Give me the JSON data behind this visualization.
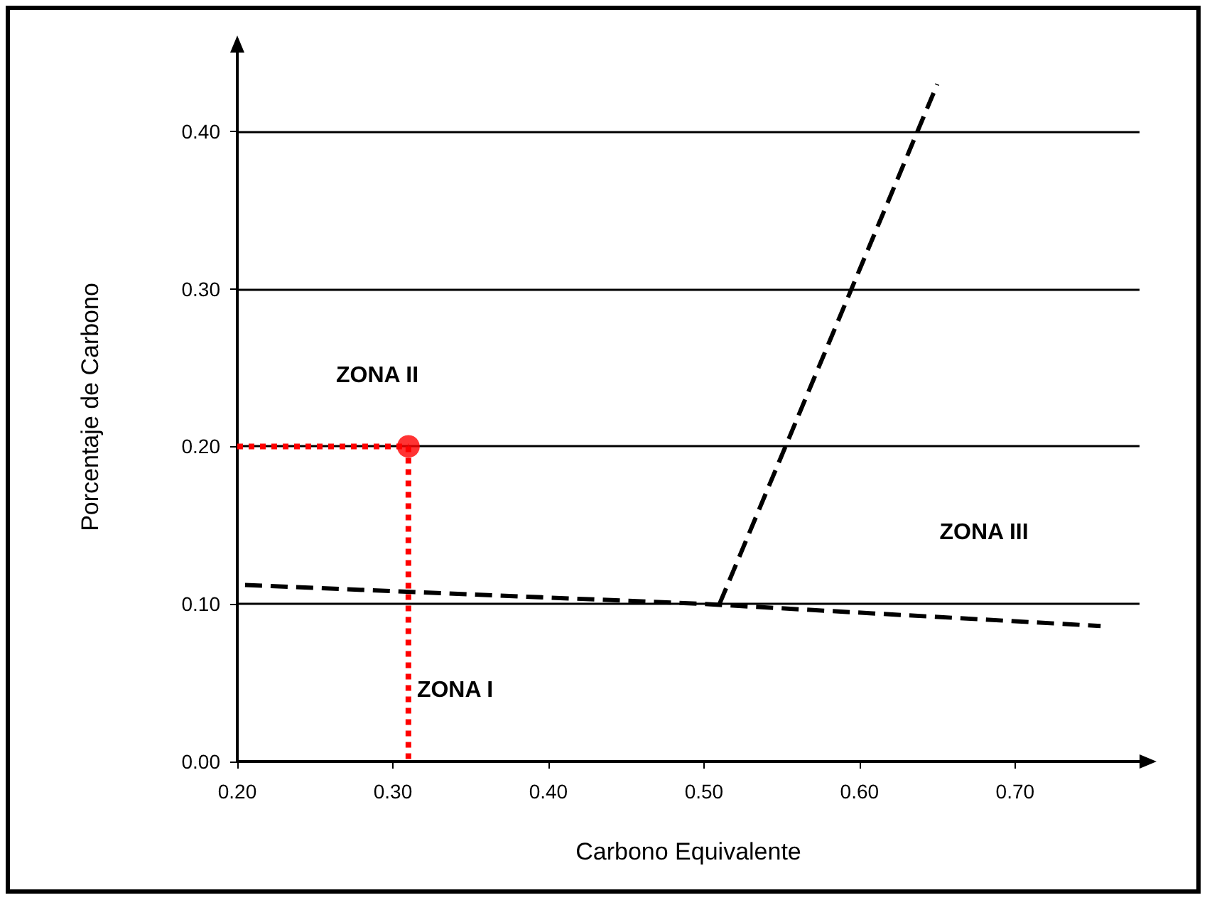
{
  "chart_data": {
    "type": "line",
    "xlabel": "Carbono Equivalente",
    "ylabel": "Porcentaje de Carbono",
    "xlim": [
      0.2,
      0.78
    ],
    "ylim": [
      0,
      0.45
    ],
    "xticks": [
      {
        "value": 0.2,
        "label": "0.20"
      },
      {
        "value": 0.3,
        "label": "0.30"
      },
      {
        "value": 0.4,
        "label": "0.40"
      },
      {
        "value": 0.5,
        "label": "0.50"
      },
      {
        "value": 0.6,
        "label": "0.60"
      },
      {
        "value": 0.7,
        "label": "0.70"
      }
    ],
    "yticks": [
      {
        "value": 0,
        "label": "0.00"
      },
      {
        "value": 0.1,
        "label": "0.10"
      },
      {
        "value": 0.2,
        "label": "0.20"
      },
      {
        "value": 0.3,
        "label": "0.30"
      },
      {
        "value": 0.4,
        "label": "0.40"
      }
    ],
    "grid": "y",
    "marker": "none",
    "series": [
      {
        "color": "#000000",
        "line_style": "dashed",
        "x": [
          0.205,
          0.5,
          0.755
        ],
        "values": [
          0.112,
          0.1,
          0.086
        ]
      },
      {
        "color": "#000000",
        "line_style": "dashed",
        "x": [
          0.51,
          0.65
        ],
        "values": [
          0.1,
          0.43
        ]
      },
      {
        "color": "#ff0000",
        "line_style": "dotted",
        "x": [
          0.2,
          0.31
        ],
        "values": [
          0.2,
          0.2
        ]
      },
      {
        "color": "#ff0000",
        "line_style": "dotted",
        "x": [
          0.31,
          0.31
        ],
        "values": [
          0.2,
          0
        ]
      },
      {
        "type": "scatter",
        "color": "#ff0000",
        "marker": "circle",
        "x": [
          0.31
        ],
        "values": [
          0.2
        ]
      }
    ],
    "annotations": [
      "ZONA II",
      "ZONA I",
      "ZONA III"
    ]
  }
}
